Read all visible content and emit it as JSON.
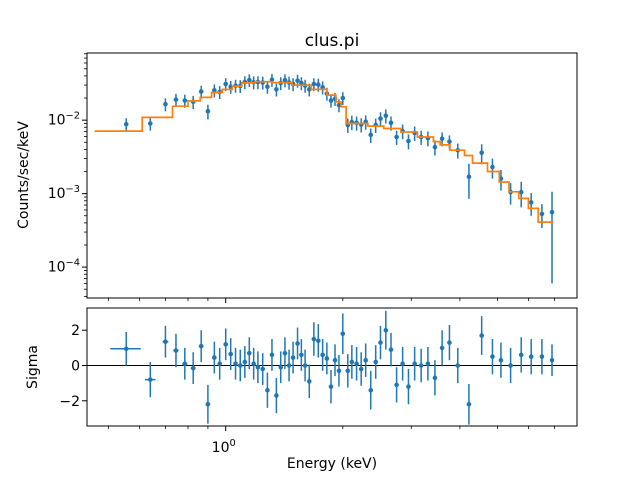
{
  "window": {
    "background": "#ffffff"
  },
  "colors": {
    "data_points": "#1f77b4",
    "model_line": "#ff7f0e",
    "axes": "#000000",
    "text": "#000000",
    "background": "#ffffff"
  },
  "chart_data": {
    "type": "scatter",
    "title": "clus.pi",
    "description": "X-ray spectral fit: counts spectrum with step model (top) and sigma residuals (bottom), shared log energy axis",
    "x": {
      "label": "Energy (keV)",
      "scale": "log",
      "lim": [
        0.44,
        8.0
      ],
      "major_ticks": [
        1
      ],
      "major_tick_labels": [
        [
          "10",
          "0"
        ]
      ],
      "minor_ticks": [
        0.5,
        0.6,
        0.7,
        0.8,
        0.9,
        2,
        3,
        4,
        5,
        6,
        7
      ]
    },
    "points": {
      "columns": [
        "energy_keV",
        "denergy_keV",
        "counts_per_sec_keV",
        "dcounts",
        "sigma",
        "dsigma"
      ],
      "rows": [
        [
          0.555,
          0.05,
          0.0088,
          0.0018,
          0.95,
          0.95
        ],
        [
          0.64,
          0.02,
          0.009,
          0.0018,
          -0.8,
          1.0
        ],
        [
          0.7,
          0.012,
          0.0165,
          0.0033,
          1.35,
          0.9
        ],
        [
          0.745,
          0.012,
          0.019,
          0.0038,
          0.85,
          0.95
        ],
        [
          0.785,
          0.012,
          0.0185,
          0.0037,
          0.1,
          0.9
        ],
        [
          0.825,
          0.012,
          0.0178,
          0.0036,
          -0.15,
          0.9
        ],
        [
          0.865,
          0.012,
          0.0245,
          0.0049,
          1.1,
          0.9
        ],
        [
          0.9,
          0.012,
          0.0132,
          0.003,
          -2.2,
          1.1
        ],
        [
          0.935,
          0.012,
          0.0255,
          0.0051,
          0.45,
          0.9
        ],
        [
          0.965,
          0.012,
          0.0242,
          0.0048,
          0.1,
          0.9
        ],
        [
          1.0,
          0.012,
          0.031,
          0.0062,
          1.2,
          0.9
        ],
        [
          1.03,
          0.012,
          0.0285,
          0.0057,
          0.65,
          0.9
        ],
        [
          1.06,
          0.012,
          0.0295,
          0.0059,
          0.1,
          0.9
        ],
        [
          1.09,
          0.012,
          0.0292,
          0.0058,
          0.0,
          0.9
        ],
        [
          1.12,
          0.012,
          0.033,
          0.0066,
          0.2,
          0.9
        ],
        [
          1.15,
          0.012,
          0.0352,
          0.007,
          0.7,
          0.9
        ],
        [
          1.18,
          0.012,
          0.0328,
          0.0066,
          0.1,
          0.9
        ],
        [
          1.21,
          0.012,
          0.033,
          0.0066,
          -0.1,
          0.9
        ],
        [
          1.245,
          0.013,
          0.0326,
          0.0065,
          -0.2,
          0.9
        ],
        [
          1.28,
          0.013,
          0.0285,
          0.0057,
          -1.4,
          1.0
        ],
        [
          1.315,
          0.013,
          0.0355,
          0.0071,
          0.6,
          0.9
        ],
        [
          1.35,
          0.013,
          0.0262,
          0.0052,
          -1.7,
          1.0
        ],
        [
          1.385,
          0.013,
          0.032,
          0.0064,
          -0.1,
          0.9
        ],
        [
          1.42,
          0.013,
          0.035,
          0.007,
          0.7,
          0.9
        ],
        [
          1.455,
          0.013,
          0.0325,
          0.0065,
          0.0,
          0.9
        ],
        [
          1.49,
          0.014,
          0.031,
          0.0062,
          0.45,
          0.9
        ],
        [
          1.53,
          0.014,
          0.0345,
          0.0069,
          1.25,
          0.9
        ],
        [
          1.565,
          0.014,
          0.032,
          0.0064,
          0.6,
          0.9
        ],
        [
          1.6,
          0.014,
          0.0295,
          0.0059,
          0.0,
          0.9
        ],
        [
          1.64,
          0.014,
          0.0262,
          0.0052,
          -0.9,
          0.95
        ],
        [
          1.685,
          0.015,
          0.031,
          0.0062,
          1.5,
          0.95
        ],
        [
          1.73,
          0.015,
          0.0305,
          0.0061,
          1.4,
          0.95
        ],
        [
          1.775,
          0.015,
          0.028,
          0.0056,
          0.6,
          0.9
        ],
        [
          1.82,
          0.015,
          0.023,
          0.0046,
          0.4,
          0.9
        ],
        [
          1.865,
          0.015,
          0.0185,
          0.0037,
          -1.2,
          0.95
        ],
        [
          1.91,
          0.015,
          0.0195,
          0.0039,
          0.3,
          0.9
        ],
        [
          1.955,
          0.015,
          0.016,
          0.0032,
          -0.3,
          0.9
        ],
        [
          2.0,
          0.016,
          0.02,
          0.004,
          1.8,
          1.15
        ],
        [
          2.06,
          0.016,
          0.0086,
          0.0019,
          -0.3,
          0.95
        ],
        [
          2.11,
          0.016,
          0.0094,
          0.0021,
          0.2,
          0.95
        ],
        [
          2.17,
          0.017,
          0.0092,
          0.002,
          0.1,
          0.95
        ],
        [
          2.23,
          0.017,
          0.0087,
          0.0019,
          -0.2,
          0.95
        ],
        [
          2.29,
          0.018,
          0.0095,
          0.0021,
          0.3,
          0.95
        ],
        [
          2.36,
          0.018,
          0.0063,
          0.0014,
          -1.4,
          1.1
        ],
        [
          2.43,
          0.019,
          0.0086,
          0.0019,
          0.2,
          0.95
        ],
        [
          2.5,
          0.019,
          0.0105,
          0.0023,
          1.3,
          0.95
        ],
        [
          2.58,
          0.02,
          0.0115,
          0.0025,
          2.0,
          1.1
        ],
        [
          2.66,
          0.02,
          0.0092,
          0.002,
          0.9,
          0.95
        ],
        [
          2.75,
          0.021,
          0.0059,
          0.0013,
          -1.1,
          1.0
        ],
        [
          2.85,
          0.022,
          0.0071,
          0.0016,
          0.1,
          0.95
        ],
        [
          2.95,
          0.023,
          0.0052,
          0.0012,
          -1.2,
          1.0
        ],
        [
          3.06,
          0.024,
          0.0067,
          0.0015,
          0.1,
          0.95
        ],
        [
          3.18,
          0.025,
          0.0059,
          0.0013,
          0.0,
          0.95
        ],
        [
          3.31,
          0.026,
          0.0057,
          0.0013,
          0.1,
          0.95
        ],
        [
          3.45,
          0.028,
          0.0043,
          0.001,
          -0.7,
          1.0
        ],
        [
          3.6,
          0.029,
          0.0056,
          0.0012,
          1.0,
          1.0
        ],
        [
          3.76,
          0.031,
          0.0051,
          0.0011,
          1.3,
          1.0
        ],
        [
          3.95,
          0.034,
          0.0039,
          0.0009,
          0.0,
          1.0
        ],
        [
          4.22,
          0.04,
          0.0017,
          0.00085,
          -2.2,
          1.15
        ],
        [
          4.55,
          0.045,
          0.0036,
          0.0011,
          1.7,
          1.1
        ],
        [
          4.85,
          0.05,
          0.0023,
          0.0007,
          0.5,
          1.0
        ],
        [
          5.1,
          0.05,
          0.0016,
          0.0005,
          0.3,
          1.0
        ],
        [
          5.4,
          0.055,
          0.00105,
          0.00034,
          0.0,
          1.0
        ],
        [
          5.75,
          0.06,
          0.00105,
          0.0004,
          0.6,
          1.0
        ],
        [
          6.1,
          0.065,
          0.00076,
          0.00026,
          0.5,
          1.0
        ],
        [
          6.5,
          0.07,
          0.00053,
          0.00019,
          0.5,
          1.0
        ],
        [
          6.9,
          0.08,
          0.00056,
          0.0005,
          0.3,
          0.9
        ]
      ]
    },
    "panels": [
      {
        "name": "spectrum",
        "ylabel": "Counts/sec/keV",
        "yscale": "log",
        "ylim": [
          3.8e-05,
          0.082
        ],
        "y_major_ticks": [
          0.01,
          0.001,
          0.0001
        ],
        "y_tick_labels": [
          [
            "10",
            "-2"
          ],
          [
            "10",
            "-3"
          ],
          [
            "10",
            "-4"
          ]
        ],
        "series": [
          {
            "name": "data",
            "color": "#1f77b4",
            "marker": "circle",
            "from_points": [
              "energy_keV",
              "counts_per_sec_keV",
              "dcounts"
            ]
          },
          {
            "name": "model",
            "color": "#ff7f0e",
            "style": "steps",
            "steps": [
              [
                0.46,
                0.61,
                0.0071
              ],
              [
                0.61,
                0.73,
                0.0109
              ],
              [
                0.73,
                0.8,
                0.0155
              ],
              [
                0.8,
                0.86,
                0.0183
              ],
              [
                0.86,
                0.92,
                0.0204
              ],
              [
                0.92,
                0.98,
                0.0238
              ],
              [
                0.98,
                1.04,
                0.0262
              ],
              [
                1.04,
                1.1,
                0.029
              ],
              [
                1.1,
                1.19,
                0.0321
              ],
              [
                1.19,
                1.32,
                0.0334
              ],
              [
                1.32,
                1.48,
                0.0324
              ],
              [
                1.48,
                1.66,
                0.0299
              ],
              [
                1.66,
                1.82,
                0.0262
              ],
              [
                1.82,
                1.92,
                0.0219
              ],
              [
                1.92,
                1.98,
                0.0177
              ],
              [
                1.98,
                2.04,
                0.0152
              ],
              [
                2.04,
                2.32,
                0.009
              ],
              [
                2.32,
                2.55,
                0.0083
              ],
              [
                2.55,
                2.82,
                0.0077
              ],
              [
                2.82,
                3.11,
                0.0069
              ],
              [
                3.11,
                3.42,
                0.0059
              ],
              [
                3.42,
                3.56,
                0.0051
              ],
              [
                3.56,
                3.77,
                0.0046
              ],
              [
                3.77,
                4.11,
                0.0039
              ],
              [
                4.11,
                4.31,
                0.0033
              ],
              [
                4.31,
                4.71,
                0.0026
              ],
              [
                4.71,
                5.05,
                0.002
              ],
              [
                5.05,
                5.35,
                0.00144
              ],
              [
                5.35,
                5.67,
                0.00106
              ],
              [
                5.67,
                6.0,
                0.00086
              ],
              [
                6.0,
                6.36,
                0.00063
              ],
              [
                6.36,
                6.96,
                0.00041
              ]
            ]
          }
        ]
      },
      {
        "name": "residuals",
        "ylabel": "Sigma",
        "yscale": "linear",
        "ylim": [
          -3.43,
          3.26
        ],
        "y_major_ticks": [
          2,
          0,
          -2
        ],
        "y_tick_labels": [
          "2",
          "0",
          "−2"
        ],
        "zero_line": 0,
        "series": [
          {
            "name": "sigma-residuals",
            "color": "#1f77b4",
            "marker": "circle",
            "from_points": [
              "energy_keV",
              "sigma",
              "dsigma",
              "denergy_keV"
            ]
          }
        ]
      }
    ],
    "xlabel": "Energy (keV)",
    "legend": null,
    "grid": false
  }
}
